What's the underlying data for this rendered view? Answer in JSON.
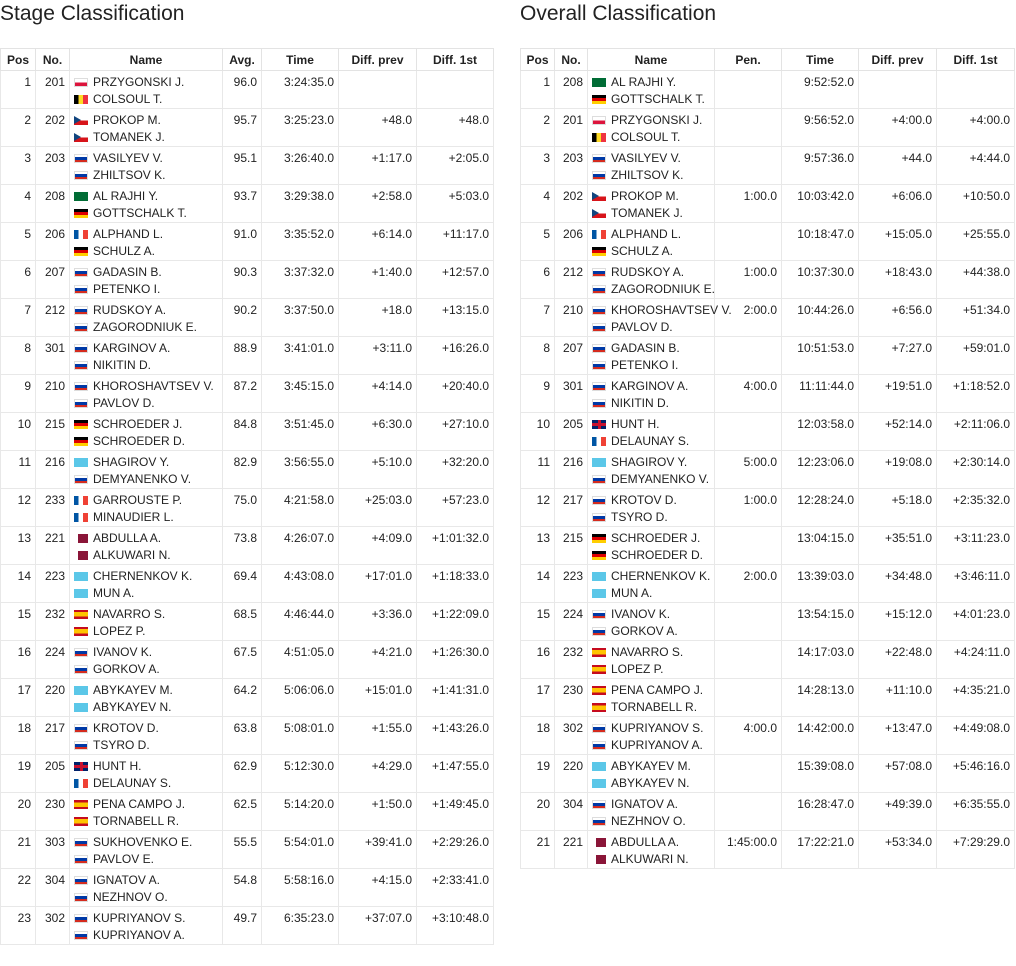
{
  "stage": {
    "title": "Stage Classification",
    "headers": [
      "Pos",
      "No.",
      "Name",
      "Avg.",
      "Time",
      "Diff. prev",
      "Diff. 1st"
    ],
    "rows": [
      {
        "pos": "1",
        "no": "201",
        "crew": [
          {
            "flag": "pl",
            "name": "PRZYGONSKI J."
          },
          {
            "flag": "be",
            "name": "COLSOUL T."
          }
        ],
        "avg": "96.0",
        "time": "3:24:35.0",
        "prev": "",
        "first": ""
      },
      {
        "pos": "2",
        "no": "202",
        "crew": [
          {
            "flag": "cz",
            "name": "PROKOP M."
          },
          {
            "flag": "cz",
            "name": "TOMANEK J."
          }
        ],
        "avg": "95.7",
        "time": "3:25:23.0",
        "prev": "+48.0",
        "first": "+48.0"
      },
      {
        "pos": "3",
        "no": "203",
        "crew": [
          {
            "flag": "ru",
            "name": "VASILYEV V."
          },
          {
            "flag": "ru",
            "name": "ZHILTSOV K."
          }
        ],
        "avg": "95.1",
        "time": "3:26:40.0",
        "prev": "+1:17.0",
        "first": "+2:05.0"
      },
      {
        "pos": "4",
        "no": "208",
        "crew": [
          {
            "flag": "sa",
            "name": "AL RAJHI Y."
          },
          {
            "flag": "de",
            "name": "GOTTSCHALK T."
          }
        ],
        "avg": "93.7",
        "time": "3:29:38.0",
        "prev": "+2:58.0",
        "first": "+5:03.0"
      },
      {
        "pos": "5",
        "no": "206",
        "crew": [
          {
            "flag": "fr",
            "name": "ALPHAND L."
          },
          {
            "flag": "de",
            "name": "SCHULZ A."
          }
        ],
        "avg": "91.0",
        "time": "3:35:52.0",
        "prev": "+6:14.0",
        "first": "+11:17.0"
      },
      {
        "pos": "6",
        "no": "207",
        "crew": [
          {
            "flag": "ru",
            "name": "GADASIN B."
          },
          {
            "flag": "ru",
            "name": "PETENKO I."
          }
        ],
        "avg": "90.3",
        "time": "3:37:32.0",
        "prev": "+1:40.0",
        "first": "+12:57.0"
      },
      {
        "pos": "7",
        "no": "212",
        "crew": [
          {
            "flag": "ru",
            "name": "RUDSKOY A."
          },
          {
            "flag": "ru",
            "name": "ZAGORODNIUK E."
          }
        ],
        "avg": "90.2",
        "time": "3:37:50.0",
        "prev": "+18.0",
        "first": "+13:15.0"
      },
      {
        "pos": "8",
        "no": "301",
        "crew": [
          {
            "flag": "ru",
            "name": "KARGINOV A."
          },
          {
            "flag": "ru",
            "name": "NIKITIN D."
          }
        ],
        "avg": "88.9",
        "time": "3:41:01.0",
        "prev": "+3:11.0",
        "first": "+16:26.0"
      },
      {
        "pos": "9",
        "no": "210",
        "crew": [
          {
            "flag": "ru",
            "name": "KHOROSHAVTSEV V."
          },
          {
            "flag": "ru",
            "name": "PAVLOV D."
          }
        ],
        "avg": "87.2",
        "time": "3:45:15.0",
        "prev": "+4:14.0",
        "first": "+20:40.0"
      },
      {
        "pos": "10",
        "no": "215",
        "crew": [
          {
            "flag": "de",
            "name": "SCHROEDER J."
          },
          {
            "flag": "de",
            "name": "SCHROEDER D."
          }
        ],
        "avg": "84.8",
        "time": "3:51:45.0",
        "prev": "+6:30.0",
        "first": "+27:10.0"
      },
      {
        "pos": "11",
        "no": "216",
        "crew": [
          {
            "flag": "kz",
            "name": "SHAGIROV Y."
          },
          {
            "flag": "ru",
            "name": "DEMYANENKO V."
          }
        ],
        "avg": "82.9",
        "time": "3:56:55.0",
        "prev": "+5:10.0",
        "first": "+32:20.0"
      },
      {
        "pos": "12",
        "no": "233",
        "crew": [
          {
            "flag": "fr",
            "name": "GARROUSTE P."
          },
          {
            "flag": "fr",
            "name": "MINAUDIER L."
          }
        ],
        "avg": "75.0",
        "time": "4:21:58.0",
        "prev": "+25:03.0",
        "first": "+57:23.0"
      },
      {
        "pos": "13",
        "no": "221",
        "crew": [
          {
            "flag": "qa",
            "name": "ABDULLA A."
          },
          {
            "flag": "qa",
            "name": "ALKUWARI N."
          }
        ],
        "avg": "73.8",
        "time": "4:26:07.0",
        "prev": "+4:09.0",
        "first": "+1:01:32.0"
      },
      {
        "pos": "14",
        "no": "223",
        "crew": [
          {
            "flag": "kz",
            "name": "CHERNENKOV K."
          },
          {
            "flag": "kz",
            "name": "MUN A."
          }
        ],
        "avg": "69.4",
        "time": "4:43:08.0",
        "prev": "+17:01.0",
        "first": "+1:18:33.0"
      },
      {
        "pos": "15",
        "no": "232",
        "crew": [
          {
            "flag": "es",
            "name": "NAVARRO S."
          },
          {
            "flag": "es",
            "name": "LOPEZ P."
          }
        ],
        "avg": "68.5",
        "time": "4:46:44.0",
        "prev": "+3:36.0",
        "first": "+1:22:09.0"
      },
      {
        "pos": "16",
        "no": "224",
        "crew": [
          {
            "flag": "ru",
            "name": "IVANOV K."
          },
          {
            "flag": "ru",
            "name": "GORKOV A."
          }
        ],
        "avg": "67.5",
        "time": "4:51:05.0",
        "prev": "+4:21.0",
        "first": "+1:26:30.0"
      },
      {
        "pos": "17",
        "no": "220",
        "crew": [
          {
            "flag": "kz",
            "name": "ABYKAYEV M."
          },
          {
            "flag": "kz",
            "name": "ABYKAYEV N."
          }
        ],
        "avg": "64.2",
        "time": "5:06:06.0",
        "prev": "+15:01.0",
        "first": "+1:41:31.0"
      },
      {
        "pos": "18",
        "no": "217",
        "crew": [
          {
            "flag": "ru",
            "name": "KROTOV D."
          },
          {
            "flag": "ru",
            "name": "TSYRO D."
          }
        ],
        "avg": "63.8",
        "time": "5:08:01.0",
        "prev": "+1:55.0",
        "first": "+1:43:26.0"
      },
      {
        "pos": "19",
        "no": "205",
        "crew": [
          {
            "flag": "gb",
            "name": "HUNT H."
          },
          {
            "flag": "fr",
            "name": "DELAUNAY S."
          }
        ],
        "avg": "62.9",
        "time": "5:12:30.0",
        "prev": "+4:29.0",
        "first": "+1:47:55.0"
      },
      {
        "pos": "20",
        "no": "230",
        "crew": [
          {
            "flag": "es",
            "name": "PENA CAMPO J."
          },
          {
            "flag": "es",
            "name": "TORNABELL R."
          }
        ],
        "avg": "62.5",
        "time": "5:14:20.0",
        "prev": "+1:50.0",
        "first": "+1:49:45.0"
      },
      {
        "pos": "21",
        "no": "303",
        "crew": [
          {
            "flag": "ru",
            "name": "SUKHOVENKO E."
          },
          {
            "flag": "ru",
            "name": "PAVLOV E."
          }
        ],
        "avg": "55.5",
        "time": "5:54:01.0",
        "prev": "+39:41.0",
        "first": "+2:29:26.0"
      },
      {
        "pos": "22",
        "no": "304",
        "crew": [
          {
            "flag": "ru",
            "name": "IGNATOV A."
          },
          {
            "flag": "ru",
            "name": "NEZHNOV O."
          }
        ],
        "avg": "54.8",
        "time": "5:58:16.0",
        "prev": "+4:15.0",
        "first": "+2:33:41.0"
      },
      {
        "pos": "23",
        "no": "302",
        "crew": [
          {
            "flag": "ru",
            "name": "KUPRIYANOV S."
          },
          {
            "flag": "ru",
            "name": "KUPRIYANOV A."
          }
        ],
        "avg": "49.7",
        "time": "6:35:23.0",
        "prev": "+37:07.0",
        "first": "+3:10:48.0"
      }
    ]
  },
  "overall": {
    "title": "Overall Classification",
    "headers": [
      "Pos",
      "No.",
      "Name",
      "Pen.",
      "Time",
      "Diff. prev",
      "Diff. 1st"
    ],
    "rows": [
      {
        "pos": "1",
        "no": "208",
        "crew": [
          {
            "flag": "sa",
            "name": "AL RAJHI Y."
          },
          {
            "flag": "de",
            "name": "GOTTSCHALK T."
          }
        ],
        "pen": "",
        "time": "9:52:52.0",
        "prev": "",
        "first": ""
      },
      {
        "pos": "2",
        "no": "201",
        "crew": [
          {
            "flag": "pl",
            "name": "PRZYGONSKI J."
          },
          {
            "flag": "be",
            "name": "COLSOUL T."
          }
        ],
        "pen": "",
        "time": "9:56:52.0",
        "prev": "+4:00.0",
        "first": "+4:00.0"
      },
      {
        "pos": "3",
        "no": "203",
        "crew": [
          {
            "flag": "ru",
            "name": "VASILYEV V."
          },
          {
            "flag": "ru",
            "name": "ZHILTSOV K."
          }
        ],
        "pen": "",
        "time": "9:57:36.0",
        "prev": "+44.0",
        "first": "+4:44.0"
      },
      {
        "pos": "4",
        "no": "202",
        "crew": [
          {
            "flag": "cz",
            "name": "PROKOP M."
          },
          {
            "flag": "cz",
            "name": "TOMANEK J."
          }
        ],
        "pen": "1:00.0",
        "time": "10:03:42.0",
        "prev": "+6:06.0",
        "first": "+10:50.0"
      },
      {
        "pos": "5",
        "no": "206",
        "crew": [
          {
            "flag": "fr",
            "name": "ALPHAND L."
          },
          {
            "flag": "de",
            "name": "SCHULZ A."
          }
        ],
        "pen": "",
        "time": "10:18:47.0",
        "prev": "+15:05.0",
        "first": "+25:55.0"
      },
      {
        "pos": "6",
        "no": "212",
        "crew": [
          {
            "flag": "ru",
            "name": "RUDSKOY A."
          },
          {
            "flag": "ru",
            "name": "ZAGORODNIUK E."
          }
        ],
        "pen": "1:00.0",
        "time": "10:37:30.0",
        "prev": "+18:43.0",
        "first": "+44:38.0"
      },
      {
        "pos": "7",
        "no": "210",
        "crew": [
          {
            "flag": "ru",
            "name": "KHOROSHAVTSEV V."
          },
          {
            "flag": "ru",
            "name": "PAVLOV D."
          }
        ],
        "pen": "2:00.0",
        "time": "10:44:26.0",
        "prev": "+6:56.0",
        "first": "+51:34.0"
      },
      {
        "pos": "8",
        "no": "207",
        "crew": [
          {
            "flag": "ru",
            "name": "GADASIN B."
          },
          {
            "flag": "ru",
            "name": "PETENKO I."
          }
        ],
        "pen": "",
        "time": "10:51:53.0",
        "prev": "+7:27.0",
        "first": "+59:01.0"
      },
      {
        "pos": "9",
        "no": "301",
        "crew": [
          {
            "flag": "ru",
            "name": "KARGINOV A."
          },
          {
            "flag": "ru",
            "name": "NIKITIN D."
          }
        ],
        "pen": "4:00.0",
        "time": "11:11:44.0",
        "prev": "+19:51.0",
        "first": "+1:18:52.0"
      },
      {
        "pos": "10",
        "no": "205",
        "crew": [
          {
            "flag": "gb",
            "name": "HUNT H."
          },
          {
            "flag": "fr",
            "name": "DELAUNAY S."
          }
        ],
        "pen": "",
        "time": "12:03:58.0",
        "prev": "+52:14.0",
        "first": "+2:11:06.0"
      },
      {
        "pos": "11",
        "no": "216",
        "crew": [
          {
            "flag": "kz",
            "name": "SHAGIROV Y."
          },
          {
            "flag": "ru",
            "name": "DEMYANENKO V."
          }
        ],
        "pen": "5:00.0",
        "time": "12:23:06.0",
        "prev": "+19:08.0",
        "first": "+2:30:14.0"
      },
      {
        "pos": "12",
        "no": "217",
        "crew": [
          {
            "flag": "ru",
            "name": "KROTOV D."
          },
          {
            "flag": "ru",
            "name": "TSYRO D."
          }
        ],
        "pen": "1:00.0",
        "time": "12:28:24.0",
        "prev": "+5:18.0",
        "first": "+2:35:32.0"
      },
      {
        "pos": "13",
        "no": "215",
        "crew": [
          {
            "flag": "de",
            "name": "SCHROEDER J."
          },
          {
            "flag": "de",
            "name": "SCHROEDER D."
          }
        ],
        "pen": "",
        "time": "13:04:15.0",
        "prev": "+35:51.0",
        "first": "+3:11:23.0"
      },
      {
        "pos": "14",
        "no": "223",
        "crew": [
          {
            "flag": "kz",
            "name": "CHERNENKOV K."
          },
          {
            "flag": "kz",
            "name": "MUN A."
          }
        ],
        "pen": "2:00.0",
        "time": "13:39:03.0",
        "prev": "+34:48.0",
        "first": "+3:46:11.0"
      },
      {
        "pos": "15",
        "no": "224",
        "crew": [
          {
            "flag": "ru",
            "name": "IVANOV K."
          },
          {
            "flag": "ru",
            "name": "GORKOV A."
          }
        ],
        "pen": "",
        "time": "13:54:15.0",
        "prev": "+15:12.0",
        "first": "+4:01:23.0"
      },
      {
        "pos": "16",
        "no": "232",
        "crew": [
          {
            "flag": "es",
            "name": "NAVARRO S."
          },
          {
            "flag": "es",
            "name": "LOPEZ P."
          }
        ],
        "pen": "",
        "time": "14:17:03.0",
        "prev": "+22:48.0",
        "first": "+4:24:11.0"
      },
      {
        "pos": "17",
        "no": "230",
        "crew": [
          {
            "flag": "es",
            "name": "PENA CAMPO J."
          },
          {
            "flag": "es",
            "name": "TORNABELL R."
          }
        ],
        "pen": "",
        "time": "14:28:13.0",
        "prev": "+11:10.0",
        "first": "+4:35:21.0"
      },
      {
        "pos": "18",
        "no": "302",
        "crew": [
          {
            "flag": "ru",
            "name": "KUPRIYANOV S."
          },
          {
            "flag": "ru",
            "name": "KUPRIYANOV A."
          }
        ],
        "pen": "4:00.0",
        "time": "14:42:00.0",
        "prev": "+13:47.0",
        "first": "+4:49:08.0"
      },
      {
        "pos": "19",
        "no": "220",
        "crew": [
          {
            "flag": "kz",
            "name": "ABYKAYEV M."
          },
          {
            "flag": "kz",
            "name": "ABYKAYEV N."
          }
        ],
        "pen": "",
        "time": "15:39:08.0",
        "prev": "+57:08.0",
        "first": "+5:46:16.0"
      },
      {
        "pos": "20",
        "no": "304",
        "crew": [
          {
            "flag": "ru",
            "name": "IGNATOV A."
          },
          {
            "flag": "ru",
            "name": "NEZHNOV O."
          }
        ],
        "pen": "",
        "time": "16:28:47.0",
        "prev": "+49:39.0",
        "first": "+6:35:55.0"
      },
      {
        "pos": "21",
        "no": "221",
        "crew": [
          {
            "flag": "qa",
            "name": "ABDULLA A."
          },
          {
            "flag": "qa",
            "name": "ALKUWARI N."
          }
        ],
        "pen": "1:45:00.0",
        "time": "17:22:21.0",
        "prev": "+53:34.0",
        "first": "+7:29:29.0"
      }
    ]
  }
}
